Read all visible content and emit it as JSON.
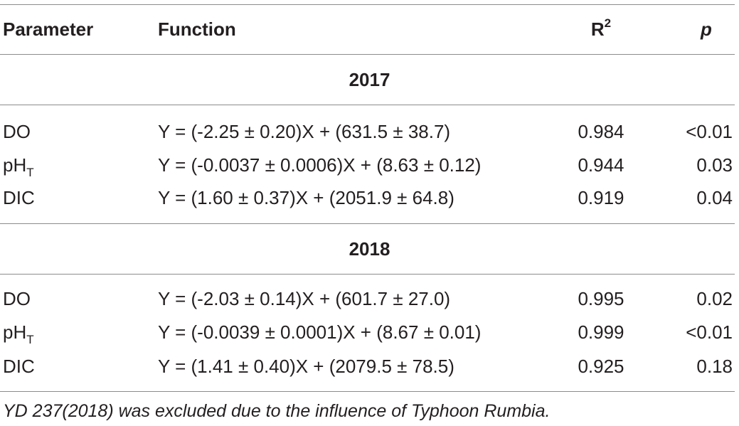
{
  "header": {
    "parameter": "Parameter",
    "function": "Function",
    "r2_base": "R",
    "r2_sup": "2",
    "p": "p"
  },
  "groups": [
    {
      "year": "2017",
      "rows": [
        {
          "param": "DO",
          "param_sub": "",
          "function": "Y = (-2.25 ± 0.20)X + (631.5 ± 38.7)",
          "r2": "0.984",
          "p": "<0.01"
        },
        {
          "param": "pH",
          "param_sub": "T",
          "function": "Y = (-0.0037 ± 0.0006)X + (8.63 ± 0.12)",
          "r2": "0.944",
          "p": "0.03"
        },
        {
          "param": "DIC",
          "param_sub": "",
          "function": "Y = (1.60 ± 0.37)X + (2051.9 ± 64.8)",
          "r2": "0.919",
          "p": "0.04"
        }
      ]
    },
    {
      "year": "2018",
      "rows": [
        {
          "param": "DO",
          "param_sub": "",
          "function": "Y = (-2.03 ± 0.14)X + (601.7 ± 27.0)",
          "r2": "0.995",
          "p": "0.02"
        },
        {
          "param": "pH",
          "param_sub": "T",
          "function": "Y = (-0.0039 ± 0.0001)X + (8.67 ± 0.01)",
          "r2": "0.999",
          "p": "<0.01"
        },
        {
          "param": "DIC",
          "param_sub": "",
          "function": "Y = (1.41 ± 0.40)X + (2079.5 ± 78.5)",
          "r2": "0.925",
          "p": "0.18"
        }
      ]
    }
  ],
  "footnote": "YD 237(2018) was excluded due to the influence of Typhoon Rumbia."
}
